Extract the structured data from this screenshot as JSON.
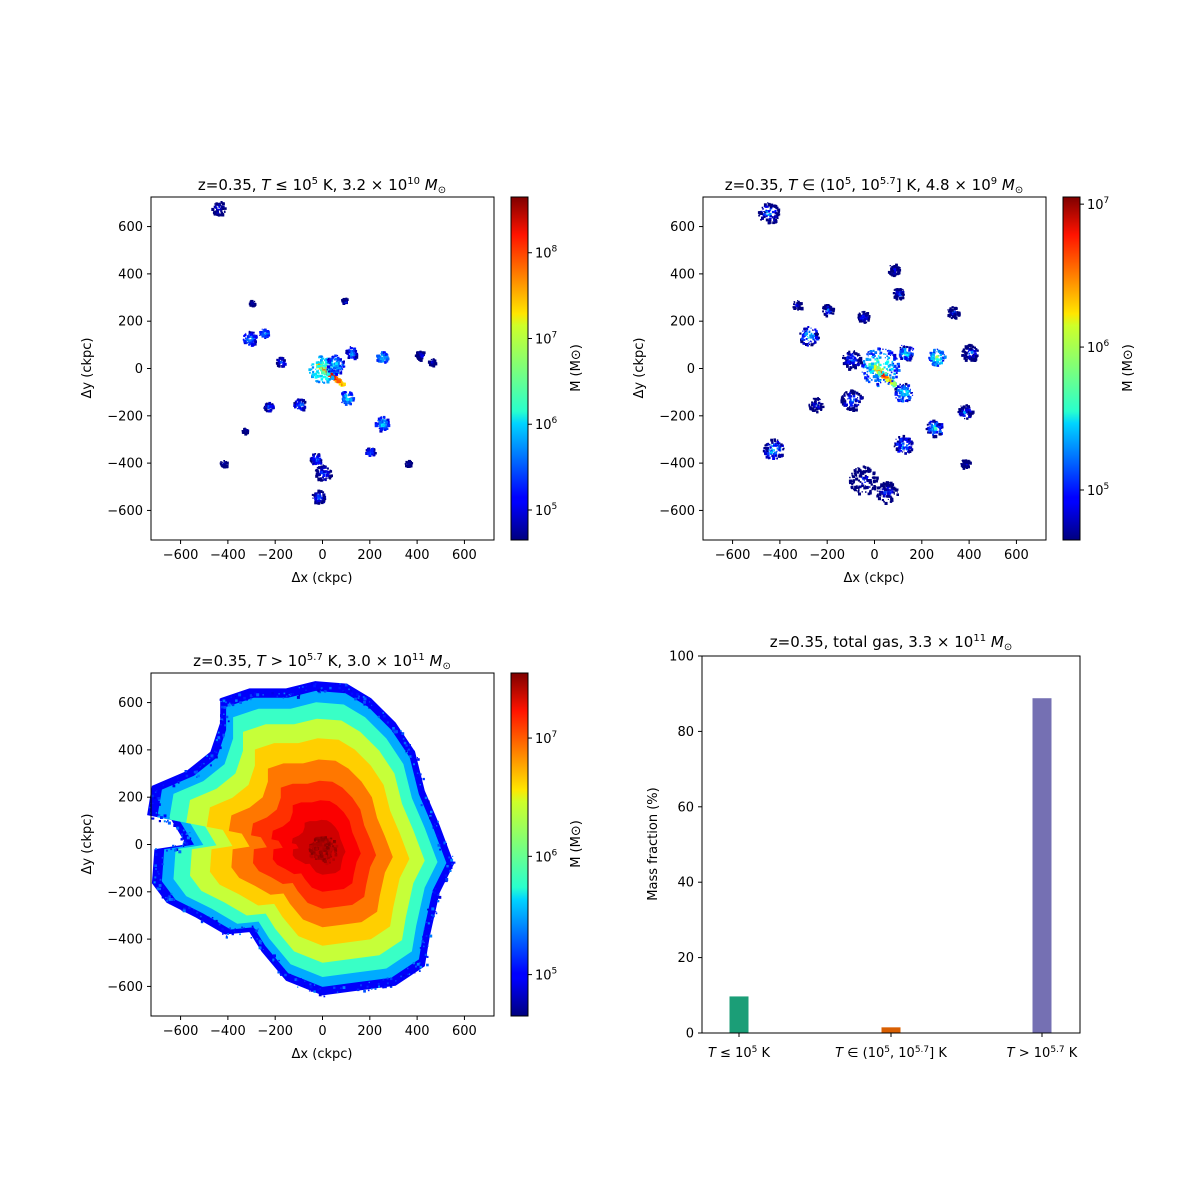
{
  "chart_data": [
    {
      "type": "heatmap",
      "title": "z=0.35, T ≤ 10⁵ K, 3.2 × 10¹⁰ M⊙",
      "title_parts": {
        "prefix": "z=0.35, ",
        "var": "T",
        "op": " ≤ 10",
        "sup1": "5",
        "mid": " K, 3.2 × 10",
        "sup2": "10",
        "unit": " M",
        "sub": "⊙"
      },
      "xlabel": "Δx (ckpc)",
      "ylabel": "Δy (ckpc)",
      "xlim": [
        -725,
        725
      ],
      "ylim": [
        -725,
        725
      ],
      "xticks": [
        -600,
        -400,
        -200,
        0,
        200,
        400,
        600
      ],
      "yticks": [
        -600,
        -400,
        -200,
        0,
        200,
        400,
        600
      ],
      "colormap": "jet",
      "colorbar": {
        "label": "M (M⊙)",
        "log_min": 4.65,
        "log_max": 8.65,
        "ticks": [
          {
            "exp": 5,
            "label": "10",
            "sup": "5"
          },
          {
            "exp": 6,
            "label": "10",
            "sup": "6"
          },
          {
            "exp": 7,
            "label": "10",
            "sup": "7"
          },
          {
            "exp": 8,
            "label": "10",
            "sup": "8"
          }
        ]
      },
      "features": [
        {
          "shape": "disk-streak",
          "x": 30,
          "y": -20,
          "len": 140,
          "angle": -40,
          "logM": 8.5
        },
        {
          "shape": "blob",
          "x": 0,
          "y": 0,
          "r": 60,
          "logM": 6.6
        },
        {
          "shape": "blob",
          "x": 50,
          "y": 20,
          "r": 40,
          "logM": 6.0
        },
        {
          "shape": "blob",
          "x": 100,
          "y": -120,
          "r": 30,
          "logM": 6.1
        },
        {
          "shape": "blob",
          "x": 120,
          "y": 70,
          "r": 25,
          "logM": 5.8
        },
        {
          "shape": "blob",
          "x": 250,
          "y": 50,
          "r": 25,
          "logM": 6.2
        },
        {
          "shape": "blob",
          "x": 410,
          "y": 60,
          "r": 20,
          "logM": 5.2
        },
        {
          "shape": "blob",
          "x": 460,
          "y": 30,
          "r": 15,
          "logM": 5.2
        },
        {
          "shape": "blob",
          "x": -310,
          "y": 130,
          "r": 30,
          "logM": 5.8
        },
        {
          "shape": "blob",
          "x": -250,
          "y": 150,
          "r": 20,
          "logM": 6.0
        },
        {
          "shape": "blob",
          "x": -180,
          "y": 30,
          "r": 20,
          "logM": 5.6
        },
        {
          "shape": "blob",
          "x": -100,
          "y": -150,
          "r": 25,
          "logM": 5.7
        },
        {
          "shape": "blob",
          "x": -230,
          "y": -160,
          "r": 20,
          "logM": 5.6
        },
        {
          "shape": "blob",
          "x": 250,
          "y": -230,
          "r": 30,
          "logM": 6.0
        },
        {
          "shape": "blob",
          "x": 200,
          "y": -350,
          "r": 20,
          "logM": 5.7
        },
        {
          "shape": "blob",
          "x": 360,
          "y": -400,
          "r": 15,
          "logM": 5.0
        },
        {
          "shape": "blob",
          "x": -440,
          "y": 680,
          "r": 30,
          "logM": 5.2
        },
        {
          "shape": "blob",
          "x": -20,
          "y": -540,
          "r": 30,
          "logM": 5.5
        },
        {
          "shape": "blob",
          "x": 0,
          "y": -440,
          "r": 35,
          "logM": 5.4
        },
        {
          "shape": "blob",
          "x": 90,
          "y": 290,
          "r": 12,
          "logM": 5.2
        },
        {
          "shape": "blob",
          "x": -300,
          "y": 280,
          "r": 12,
          "logM": 5.0
        },
        {
          "shape": "blob",
          "x": -420,
          "y": -400,
          "r": 15,
          "logM": 5.0
        },
        {
          "shape": "blob",
          "x": -330,
          "y": -260,
          "r": 12,
          "logM": 5.1
        },
        {
          "shape": "blob",
          "x": -30,
          "y": -380,
          "r": 25,
          "logM": 5.6
        }
      ]
    },
    {
      "type": "heatmap",
      "title": "z=0.35, T ∈ (10⁵, 10⁵·⁷] K, 4.8 × 10⁹ M⊙",
      "title_parts": {
        "prefix": "z=0.35, ",
        "var": "T",
        "op": " ∈ (10",
        "sup1": "5",
        "op2": ", 10",
        "sup1b": "5.7",
        "mid": "] K, 4.8 × 10",
        "sup2": "9",
        "unit": " M",
        "sub": "⊙"
      },
      "xlabel": "Δx (ckpc)",
      "ylabel": "Δy (ckpc)",
      "xlim": [
        -725,
        725
      ],
      "ylim": [
        -725,
        725
      ],
      "xticks": [
        -600,
        -400,
        -200,
        0,
        200,
        400,
        600
      ],
      "yticks": [
        -600,
        -400,
        -200,
        0,
        200,
        400,
        600
      ],
      "colormap": "jet",
      "colorbar": {
        "label": "M (M⊙)",
        "log_min": 4.65,
        "log_max": 7.05,
        "ticks": [
          {
            "exp": 5,
            "label": "10",
            "sup": "5"
          },
          {
            "exp": 6,
            "label": "10",
            "sup": "6"
          },
          {
            "exp": 7,
            "label": "10",
            "sup": "7"
          }
        ]
      },
      "features": [
        {
          "shape": "disk-streak",
          "x": 30,
          "y": -20,
          "len": 140,
          "angle": -40,
          "logM": 6.9
        },
        {
          "shape": "blob",
          "x": 20,
          "y": 10,
          "r": 80,
          "logM": 5.9
        },
        {
          "shape": "blob",
          "x": 120,
          "y": -100,
          "r": 40,
          "logM": 5.7
        },
        {
          "shape": "blob",
          "x": 130,
          "y": 70,
          "r": 35,
          "logM": 5.6
        },
        {
          "shape": "blob",
          "x": 260,
          "y": 50,
          "r": 35,
          "logM": 5.9
        },
        {
          "shape": "blob",
          "x": 400,
          "y": 70,
          "r": 35,
          "logM": 5.2
        },
        {
          "shape": "blob",
          "x": 250,
          "y": -250,
          "r": 35,
          "logM": 5.6
        },
        {
          "shape": "blob",
          "x": -280,
          "y": 140,
          "r": 40,
          "logM": 5.6
        },
        {
          "shape": "blob",
          "x": -200,
          "y": 250,
          "r": 25,
          "logM": 5.2
        },
        {
          "shape": "blob",
          "x": -50,
          "y": 220,
          "r": 25,
          "logM": 5.2
        },
        {
          "shape": "blob",
          "x": 100,
          "y": 320,
          "r": 25,
          "logM": 5.2
        },
        {
          "shape": "blob",
          "x": 80,
          "y": 420,
          "r": 25,
          "logM": 5.1
        },
        {
          "shape": "blob",
          "x": -450,
          "y": 660,
          "r": 45,
          "logM": 5.3
        },
        {
          "shape": "blob",
          "x": -430,
          "y": -340,
          "r": 45,
          "logM": 5.5
        },
        {
          "shape": "blob",
          "x": -50,
          "y": -470,
          "r": 60,
          "logM": 5.0
        },
        {
          "shape": "blob",
          "x": 50,
          "y": -520,
          "r": 45,
          "logM": 5.1
        },
        {
          "shape": "blob",
          "x": 120,
          "y": -320,
          "r": 40,
          "logM": 5.5
        },
        {
          "shape": "blob",
          "x": -100,
          "y": -130,
          "r": 45,
          "logM": 5.3
        },
        {
          "shape": "blob",
          "x": -250,
          "y": -150,
          "r": 30,
          "logM": 5.2
        },
        {
          "shape": "blob",
          "x": 380,
          "y": -180,
          "r": 30,
          "logM": 5.3
        },
        {
          "shape": "blob",
          "x": 380,
          "y": -400,
          "r": 20,
          "logM": 5.0
        },
        {
          "shape": "blob",
          "x": 330,
          "y": 240,
          "r": 25,
          "logM": 5.1
        },
        {
          "shape": "blob",
          "x": -100,
          "y": 40,
          "r": 40,
          "logM": 5.3
        },
        {
          "shape": "blob",
          "x": -330,
          "y": 270,
          "r": 20,
          "logM": 5.0
        }
      ]
    },
    {
      "type": "heatmap",
      "title": "z=0.35, T > 10⁵·⁷ K, 3.0 × 10¹¹ M⊙",
      "title_parts": {
        "prefix": "z=0.35, ",
        "var": "T",
        "op": " > 10",
        "sup1": "5.7",
        "mid": " K, 3.0 × 10",
        "sup2": "11",
        "unit": " M",
        "sub": "⊙"
      },
      "xlabel": "Δx (ckpc)",
      "ylabel": "Δy (ckpc)",
      "xlim": [
        -725,
        725
      ],
      "ylim": [
        -725,
        725
      ],
      "xticks": [
        -600,
        -400,
        -200,
        0,
        200,
        400,
        600
      ],
      "yticks": [
        -600,
        -400,
        -200,
        0,
        200,
        400,
        600
      ],
      "colormap": "jet",
      "colorbar": {
        "label": "M (M⊙)",
        "log_min": 4.65,
        "log_max": 7.55,
        "ticks": [
          {
            "exp": 5,
            "label": "10",
            "sup": "5"
          },
          {
            "exp": 6,
            "label": "10",
            "sup": "6"
          },
          {
            "exp": 7,
            "label": "10",
            "sup": "7"
          }
        ]
      },
      "halo": {
        "center": [
          0,
          -20
        ],
        "peak_logM": 7.45,
        "outline": [
          [
            -420,
            600
          ],
          [
            -300,
            640
          ],
          [
            -150,
            640
          ],
          [
            -30,
            670
          ],
          [
            100,
            660
          ],
          [
            200,
            600
          ],
          [
            300,
            500
          ],
          [
            380,
            380
          ],
          [
            420,
            220
          ],
          [
            480,
            80
          ],
          [
            540,
            -80
          ],
          [
            480,
            -200
          ],
          [
            440,
            -380
          ],
          [
            420,
            -500
          ],
          [
            300,
            -580
          ],
          [
            150,
            -600
          ],
          [
            0,
            -620
          ],
          [
            -150,
            -560
          ],
          [
            -250,
            -440
          ],
          [
            -300,
            -360
          ],
          [
            -400,
            -370
          ],
          [
            -520,
            -300
          ],
          [
            -640,
            -240
          ],
          [
            -700,
            -160
          ],
          [
            -690,
            -20
          ],
          [
            -560,
            0
          ],
          [
            -620,
            100
          ],
          [
            -720,
            120
          ],
          [
            -700,
            240
          ],
          [
            -560,
            300
          ],
          [
            -460,
            380
          ],
          [
            -420,
            500
          ]
        ]
      }
    },
    {
      "type": "bar",
      "title": "z=0.35, total gas, 3.3 × 10¹¹ M⊙",
      "title_parts": {
        "prefix": "z=0.35, total gas, 3.3 × 10",
        "sup": "11",
        "unit": " M",
        "sub": "⊙"
      },
      "xlabel": "",
      "ylabel": "Mass fraction (%)",
      "ylim": [
        0,
        100
      ],
      "yticks": [
        0,
        20,
        40,
        60,
        80,
        100
      ],
      "categories": [
        "T ≤ 10⁵ K",
        "T ∈ (10⁵, 10⁵·⁷] K",
        "T > 10⁵·⁷ K"
      ],
      "category_parts": [
        {
          "var": "T",
          "op": " ≤ 10",
          "sup": "5",
          "tail": " K"
        },
        {
          "var": "T",
          "op": " ∈ (10",
          "sup": "5",
          "op2": ", 10",
          "sup2": "5.7",
          "tail": "] K"
        },
        {
          "var": "T",
          "op": " > 10",
          "sup": "5.7",
          "tail": " K"
        }
      ],
      "values": [
        9.7,
        1.5,
        88.8
      ],
      "colors": [
        "#1b9e77",
        "#d95f02",
        "#7570b3"
      ]
    }
  ]
}
